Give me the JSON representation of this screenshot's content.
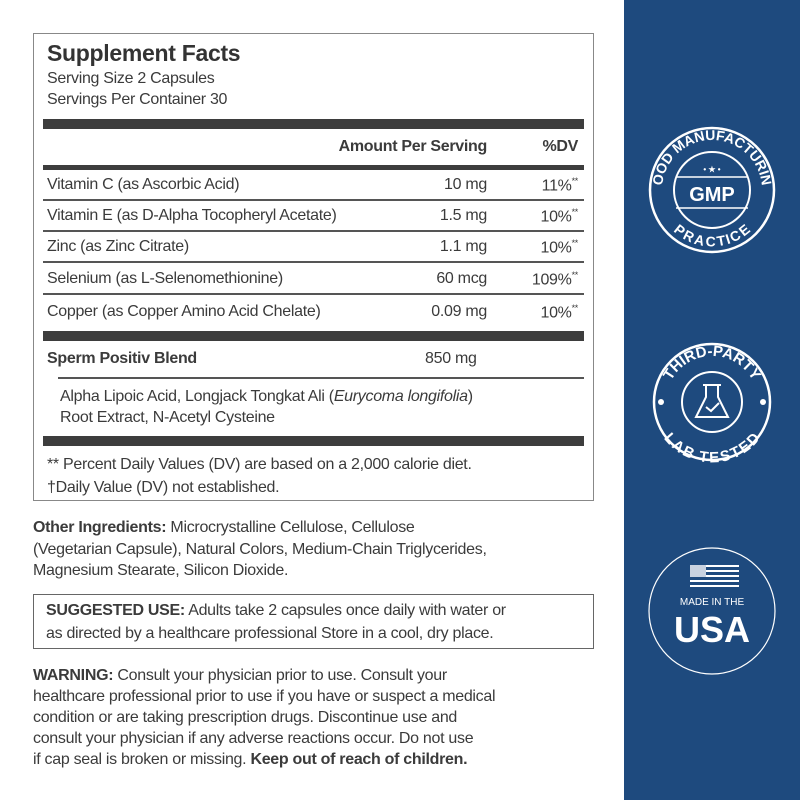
{
  "facts": {
    "title": "Supplement Facts",
    "serving_size": "Serving Size 2 Capsules",
    "servings_per_container": "Servings Per Container 30",
    "col_amount": "Amount Per Serving",
    "col_dv": "%DV",
    "rows": [
      {
        "name": "Vitamin C (as Ascorbic Acid)",
        "amount": "10 mg",
        "dv": "11%",
        "mark": "**"
      },
      {
        "name": "Vitamin E (as D-Alpha Tocopheryl Acetate)",
        "amount": "1.5 mg",
        "dv": "10%",
        "mark": "**"
      },
      {
        "name": "Zinc (as Zinc Citrate)",
        "amount": "1.1 mg",
        "dv": "10%",
        "mark": "**"
      },
      {
        "name": "Selenium (as L-Selenomethionine)",
        "amount": "60 mcg",
        "dv": "109%",
        "mark": "**"
      },
      {
        "name": "Copper (as Copper Amino Acid Chelate)",
        "amount": "0.09 mg",
        "dv": "10%",
        "mark": "**"
      }
    ],
    "blend": {
      "name": "Sperm Positiv Blend",
      "amount": "850 mg",
      "line1_a": "Alpha Lipoic Acid, Longjack Tongkat Ali (",
      "line1_italic": "Eurycoma longifolia",
      "line1_b": ")",
      "line2": "Root Extract, N-Acetyl Cysteine"
    },
    "footnote1": "** Percent Daily Values (DV) are based on a 2,000 calorie diet.",
    "footnote2": "†Daily Value (DV) not established."
  },
  "other": {
    "label": "Other Ingredients:",
    "lines": [
      " Microcrystalline Cellulose, Cellulose",
      "(Vegetarian Capsule), Natural Colors, Medium-Chain Triglycerides,",
      "Magnesium Stearate, Silicon Dioxide."
    ]
  },
  "suggested": {
    "label": "SUGGESTED USE:",
    "lines": [
      " Adults take 2 capsules once daily with water or",
      "as directed by a healthcare professional Store in a cool, dry place."
    ]
  },
  "warning": {
    "label": "WARNING:",
    "lines": [
      " Consult your physician prior to use. Consult your",
      "healthcare professional prior to use if you have or suspect a medical",
      "condition or are taking prescription drugs. Discontinue use and",
      "consult your physician if any adverse reactions occur. Do not use",
      "if cap seal is broken or missing. "
    ],
    "bold_end": "Keep out of reach of children."
  },
  "badges": {
    "gmp": {
      "top": "GOOD MANUFACTURING",
      "center": "GMP",
      "bottom": "PRACTICE"
    },
    "lab": {
      "top": "THIRD-PARTY",
      "bottom": "LAB TESTED",
      "icon": "flask-check-icon"
    },
    "usa": {
      "small": "MADE IN THE",
      "big": "USA",
      "icon": "us-flag-icon"
    }
  },
  "colors": {
    "panel": "#1e4a7e",
    "text": "#3b3b3b"
  }
}
